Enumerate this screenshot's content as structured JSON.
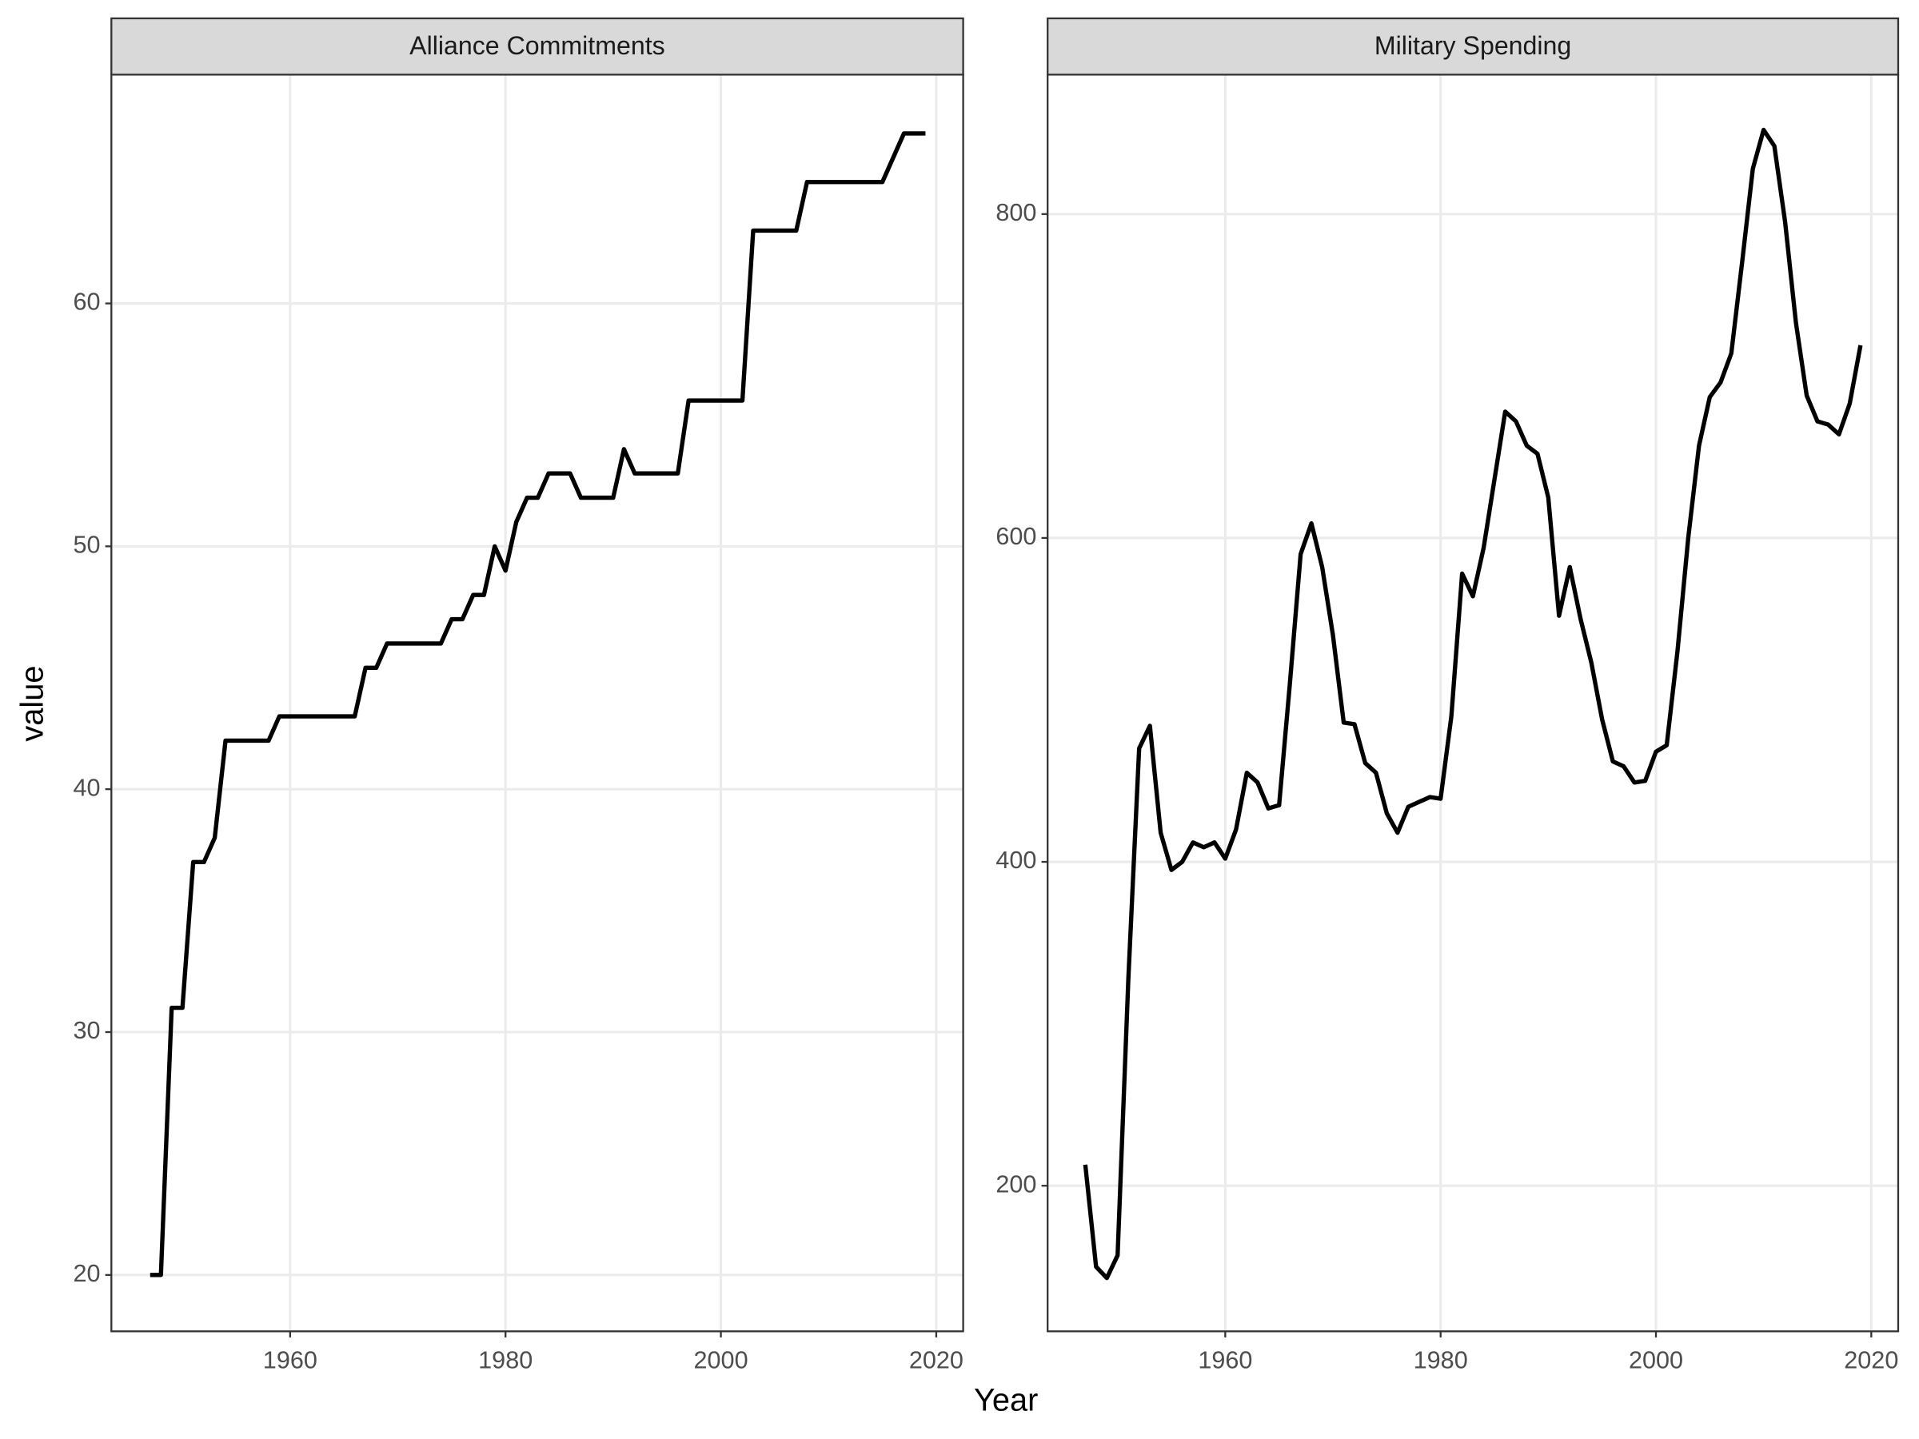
{
  "chart_data": [
    {
      "type": "line",
      "title": "Alliance Commitments",
      "xlabel": "Year",
      "ylabel": "value",
      "x": [
        1947,
        1948,
        1949,
        1950,
        1951,
        1952,
        1953,
        1954,
        1955,
        1956,
        1957,
        1958,
        1959,
        1960,
        1961,
        1962,
        1963,
        1964,
        1965,
        1966,
        1967,
        1968,
        1969,
        1970,
        1971,
        1972,
        1973,
        1974,
        1975,
        1976,
        1977,
        1978,
        1979,
        1980,
        1981,
        1982,
        1983,
        1984,
        1985,
        1986,
        1987,
        1988,
        1989,
        1990,
        1991,
        1992,
        1993,
        1994,
        1995,
        1996,
        1997,
        1998,
        1999,
        2000,
        2001,
        2002,
        2003,
        2004,
        2005,
        2006,
        2007,
        2008,
        2009,
        2010,
        2011,
        2012,
        2013,
        2014,
        2015,
        2016,
        2017,
        2018,
        2019
      ],
      "values": [
        20,
        20,
        31,
        31,
        37,
        37,
        38,
        42,
        42,
        42,
        42,
        42,
        43,
        43,
        43,
        43,
        43,
        43,
        43,
        43,
        45,
        45,
        46,
        46,
        46,
        46,
        46,
        46,
        47,
        47,
        48,
        48,
        50,
        49,
        51,
        52,
        52,
        53,
        53,
        53,
        52,
        52,
        52,
        52,
        54,
        53,
        53,
        53,
        53,
        53,
        56,
        56,
        56,
        56,
        56,
        56,
        63,
        63,
        63,
        63,
        63,
        65,
        65,
        65,
        65,
        65,
        65,
        65,
        65,
        66,
        67,
        67,
        67
      ],
      "color": "#000000",
      "xlim": [
        1943.4,
        2022.5
      ],
      "xticks": [
        1960,
        1980,
        2000,
        2020
      ],
      "ylim": [
        17.68,
        69.42
      ],
      "yticks": [
        20,
        30,
        40,
        50,
        60
      ],
      "grid": true
    },
    {
      "type": "line",
      "title": "Military Spending",
      "x": [
        1947,
        1948,
        1949,
        1950,
        1951,
        1952,
        1953,
        1954,
        1955,
        1956,
        1957,
        1958,
        1959,
        1960,
        1961,
        1962,
        1963,
        1964,
        1965,
        1966,
        1967,
        1968,
        1969,
        1970,
        1971,
        1972,
        1973,
        1974,
        1975,
        1976,
        1977,
        1978,
        1979,
        1980,
        1981,
        1982,
        1983,
        1984,
        1985,
        1986,
        1987,
        1988,
        1989,
        1990,
        1991,
        1992,
        1993,
        1994,
        1995,
        1996,
        1997,
        1998,
        1999,
        2000,
        2001,
        2002,
        2003,
        2004,
        2005,
        2006,
        2007,
        2008,
        2009,
        2010,
        2011,
        2012,
        2013,
        2014,
        2015,
        2016,
        2017,
        2018,
        2019
      ],
      "values": [
        213,
        150,
        143,
        157,
        328,
        470,
        484,
        418,
        395,
        400,
        412,
        409,
        412,
        402,
        420,
        455,
        449,
        433,
        435,
        510,
        590,
        609,
        582,
        540,
        486,
        485,
        461,
        455,
        430,
        418,
        434,
        437,
        440,
        439,
        490,
        578,
        564,
        594,
        636,
        678,
        672,
        657,
        652,
        625,
        552,
        582,
        550,
        523,
        488,
        462,
        459,
        449,
        450,
        468,
        472,
        530,
        600,
        657,
        687,
        696,
        714,
        770,
        828,
        852,
        842,
        795,
        733,
        688,
        672,
        670,
        664,
        683,
        719
      ],
      "color": "#000000",
      "xlim": [
        1943.5,
        2022.5
      ],
      "xticks": [
        1960,
        1980,
        2000,
        2020
      ],
      "ylim": [
        110.1,
        886.1
      ],
      "yticks": [
        200,
        400,
        600,
        800
      ],
      "grid": true
    }
  ]
}
